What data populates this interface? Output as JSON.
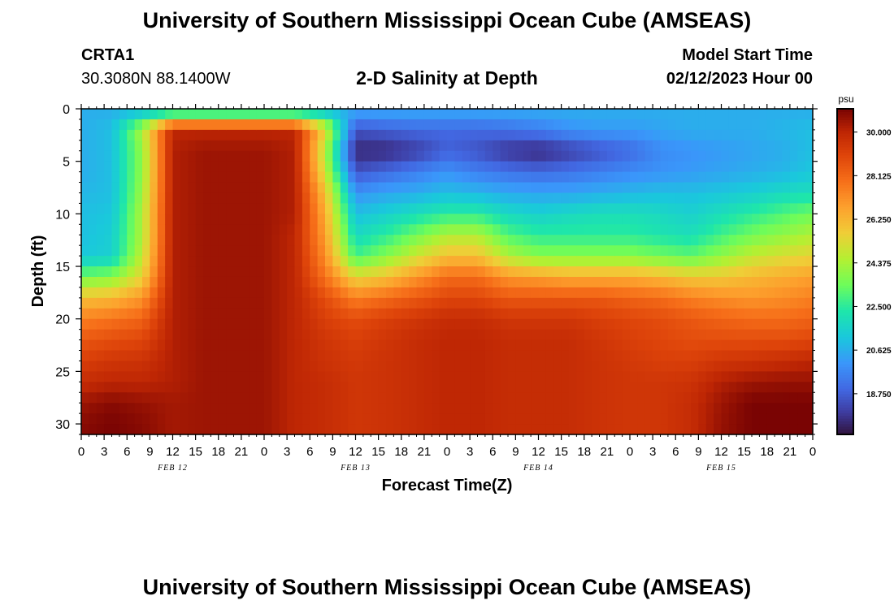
{
  "header": {
    "title": "University of Southern Mississippi Ocean Cube (AMSEAS)",
    "station": "CRTA1",
    "coords": "30.3080N  88.1400W",
    "subtitle": "2-D Salinity at Depth",
    "model_start_label": "Model Start Time",
    "model_start_value": "02/12/2023 Hour 00"
  },
  "footer": {
    "title": "University of Southern Mississippi Ocean Cube (AMSEAS)"
  },
  "chart_data": {
    "type": "heatmap",
    "title": "2-D Salinity at Depth",
    "xlabel": "Forecast Time(Z)",
    "ylabel": "Depth (ft)",
    "xlim": [
      0,
      96
    ],
    "ylim": [
      31,
      0
    ],
    "x_ticks": [
      0,
      3,
      6,
      9,
      12,
      15,
      18,
      21,
      24,
      27,
      30,
      33,
      36,
      39,
      42,
      45,
      48,
      51,
      54,
      57,
      60,
      63,
      66,
      69,
      72,
      75,
      78,
      81,
      84,
      87,
      90,
      93,
      96
    ],
    "x_tick_labels": [
      "0",
      "3",
      "6",
      "9",
      "12",
      "15",
      "18",
      "21",
      "0",
      "3",
      "6",
      "9",
      "12",
      "15",
      "18",
      "21",
      "0",
      "3",
      "6",
      "9",
      "12",
      "15",
      "18",
      "21",
      "0",
      "3",
      "6",
      "9",
      "12",
      "15",
      "18",
      "21",
      "0"
    ],
    "y_ticks": [
      0,
      5,
      10,
      15,
      20,
      25,
      30
    ],
    "y_tick_labels": [
      "0",
      "5",
      "10",
      "15",
      "20",
      "25",
      "30"
    ],
    "day_labels": [
      {
        "x": 12,
        "label": "FEB 12"
      },
      {
        "x": 36,
        "label": "FEB 13"
      },
      {
        "x": 60,
        "label": "FEB 14"
      },
      {
        "x": 84,
        "label": "FEB 15"
      }
    ],
    "colorbar": {
      "unit": "psu",
      "min": 17.0,
      "max": 31.0,
      "tick_values": [
        30.0,
        28.125,
        26.25,
        24.375,
        22.5,
        20.625,
        18.75
      ],
      "tick_labels": [
        "30.000",
        "28.125",
        "26.250",
        "24.375",
        "22.500",
        "20.625",
        "18.750"
      ]
    },
    "grid": {
      "hours": [
        0,
        4,
        8,
        12,
        16,
        20,
        24,
        28,
        32,
        36,
        40,
        44,
        48,
        52,
        56,
        60,
        64,
        68,
        72,
        76,
        80,
        84,
        88,
        92,
        96
      ],
      "depths_ft": [
        0,
        2,
        4,
        6,
        8,
        10,
        12,
        14,
        16,
        18,
        20,
        22,
        24,
        26,
        28,
        30
      ],
      "salinity_psu": [
        [
          20.6,
          20.6,
          20.6,
          20.6,
          20.6,
          20.6,
          20.6,
          20.6,
          20.6,
          20.6,
          20.6,
          20.6,
          20.6,
          20.6,
          20.6,
          20.6,
          20.6,
          20.6,
          20.6,
          20.6,
          20.6,
          20.6,
          20.6,
          20.6,
          20.6
        ],
        [
          20.6,
          21.0,
          24.5,
          30.0,
          30.0,
          30.0,
          30.0,
          30.0,
          25.5,
          18.5,
          18.8,
          19.0,
          19.0,
          19.0,
          19.2,
          19.5,
          20.0,
          20.2,
          20.2,
          20.4,
          20.6,
          20.6,
          20.6,
          20.8,
          21.0
        ],
        [
          20.6,
          21.0,
          24.0,
          30.2,
          30.5,
          30.5,
          30.5,
          30.2,
          24.5,
          17.5,
          17.5,
          18.0,
          18.8,
          18.5,
          17.8,
          17.5,
          18.0,
          18.5,
          19.0,
          19.8,
          20.0,
          20.2,
          20.4,
          20.6,
          21.0
        ],
        [
          20.6,
          21.0,
          24.0,
          30.2,
          30.5,
          30.5,
          30.5,
          30.2,
          25.0,
          18.5,
          19.0,
          19.5,
          20.0,
          19.5,
          19.2,
          19.0,
          19.2,
          19.5,
          19.8,
          20.0,
          20.2,
          20.4,
          20.6,
          20.8,
          21.2
        ],
        [
          20.8,
          21.0,
          24.2,
          30.2,
          30.5,
          30.5,
          30.5,
          30.2,
          26.0,
          20.0,
          20.4,
          20.6,
          21.0,
          20.8,
          20.5,
          20.4,
          20.4,
          20.6,
          20.8,
          21.0,
          21.0,
          21.2,
          21.4,
          21.8,
          22.0
        ],
        [
          21.0,
          21.2,
          24.5,
          30.2,
          30.5,
          30.5,
          30.5,
          30.2,
          26.5,
          21.0,
          21.5,
          22.0,
          22.5,
          22.5,
          21.8,
          21.5,
          21.8,
          22.0,
          22.0,
          21.8,
          21.5,
          22.0,
          22.5,
          23.0,
          23.5
        ],
        [
          21.0,
          21.4,
          24.5,
          30.2,
          30.5,
          30.5,
          30.5,
          30.0,
          26.8,
          21.8,
          22.5,
          23.5,
          24.5,
          24.5,
          23.0,
          22.5,
          22.5,
          22.5,
          22.5,
          22.2,
          22.0,
          22.8,
          23.5,
          24.0,
          24.5
        ],
        [
          21.2,
          21.5,
          24.8,
          30.2,
          30.5,
          30.5,
          30.5,
          30.0,
          27.2,
          22.8,
          23.8,
          25.0,
          26.0,
          26.0,
          24.5,
          23.8,
          23.8,
          23.8,
          23.8,
          23.5,
          23.2,
          24.0,
          24.8,
          25.2,
          25.5
        ],
        [
          23.5,
          23.8,
          25.5,
          30.2,
          30.5,
          30.5,
          30.5,
          30.0,
          27.8,
          25.5,
          26.0,
          27.0,
          28.0,
          28.0,
          27.0,
          26.8,
          26.5,
          26.5,
          26.5,
          26.2,
          25.8,
          25.8,
          26.2,
          26.5,
          26.8
        ],
        [
          26.0,
          26.2,
          27.0,
          30.2,
          30.5,
          30.5,
          30.5,
          30.0,
          28.8,
          27.5,
          28.0,
          28.5,
          29.0,
          29.0,
          28.5,
          28.5,
          28.5,
          28.5,
          28.2,
          28.0,
          27.5,
          27.2,
          27.0,
          27.2,
          27.5
        ],
        [
          27.5,
          27.8,
          28.2,
          30.2,
          30.5,
          30.5,
          30.5,
          30.0,
          29.2,
          28.8,
          29.2,
          29.5,
          29.8,
          29.8,
          29.5,
          29.5,
          29.5,
          29.2,
          29.0,
          28.8,
          28.5,
          28.2,
          28.0,
          28.0,
          28.2
        ],
        [
          28.5,
          28.8,
          29.0,
          30.2,
          30.5,
          30.5,
          30.5,
          30.0,
          29.5,
          29.2,
          29.5,
          29.8,
          30.0,
          30.0,
          29.8,
          29.8,
          29.8,
          29.5,
          29.2,
          29.0,
          28.8,
          28.8,
          28.8,
          28.8,
          29.0
        ],
        [
          29.2,
          29.5,
          29.6,
          30.2,
          30.5,
          30.5,
          30.5,
          30.0,
          29.6,
          29.4,
          29.6,
          29.8,
          30.0,
          30.0,
          29.8,
          29.8,
          29.8,
          29.6,
          29.4,
          29.2,
          29.2,
          29.5,
          29.6,
          29.8,
          30.0
        ],
        [
          29.8,
          30.0,
          30.0,
          30.2,
          30.5,
          30.5,
          30.5,
          30.0,
          29.8,
          29.5,
          29.6,
          29.8,
          30.0,
          30.0,
          29.8,
          29.8,
          29.8,
          29.6,
          29.5,
          29.5,
          29.6,
          30.2,
          30.5,
          30.6,
          30.6
        ],
        [
          30.5,
          30.8,
          30.6,
          30.4,
          30.5,
          30.5,
          30.5,
          30.0,
          29.8,
          29.5,
          29.6,
          29.8,
          30.0,
          30.0,
          29.8,
          29.8,
          29.8,
          29.6,
          29.5,
          29.5,
          29.8,
          30.5,
          31.0,
          31.0,
          31.0
        ],
        [
          30.8,
          31.0,
          30.8,
          30.4,
          30.5,
          30.5,
          30.5,
          30.0,
          29.8,
          29.5,
          29.6,
          29.8,
          30.0,
          30.0,
          29.8,
          29.8,
          29.8,
          29.6,
          29.5,
          29.5,
          29.8,
          30.6,
          31.0,
          31.0,
          31.0
        ]
      ]
    }
  }
}
